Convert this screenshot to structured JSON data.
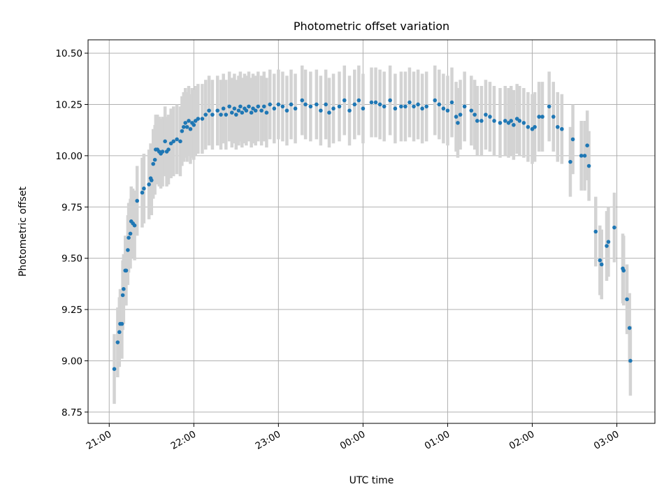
{
  "chart_data": {
    "type": "scatter",
    "title": "Photometric offset variation",
    "xlabel": "UTC time",
    "ylabel": "Photometric offset",
    "x_unit": "hours since 21:00 UTC",
    "xlim": [
      -0.25,
      6.45
    ],
    "ylim": [
      8.695,
      10.565
    ],
    "x_ticks": [
      {
        "x": 0,
        "label": "21:00"
      },
      {
        "x": 1,
        "label": "22:00"
      },
      {
        "x": 2,
        "label": "23:00"
      },
      {
        "x": 3,
        "label": "00:00"
      },
      {
        "x": 4,
        "label": "01:00"
      },
      {
        "x": 5,
        "label": "02:00"
      },
      {
        "x": 6,
        "label": "03:00"
      }
    ],
    "y_ticks": [
      {
        "y": 8.75,
        "label": "8.75"
      },
      {
        "y": 9.0,
        "label": "9.00"
      },
      {
        "y": 9.25,
        "label": "9.25"
      },
      {
        "y": 9.5,
        "label": "9.50"
      },
      {
        "y": 9.75,
        "label": "9.75"
      },
      {
        "y": 10.0,
        "label": "10.00"
      },
      {
        "y": 10.25,
        "label": "10.25"
      },
      {
        "y": 10.5,
        "label": "10.50"
      }
    ],
    "grid": true,
    "legend": "none",
    "point_color": "#1f77b4",
    "errorbar_color": "#d3d3d3",
    "errorbar_half_height": 0.17,
    "points": [
      {
        "x": 0.06,
        "y": 8.96
      },
      {
        "x": 0.1,
        "y": 9.09
      },
      {
        "x": 0.12,
        "y": 9.14
      },
      {
        "x": 0.13,
        "y": 9.18
      },
      {
        "x": 0.15,
        "y": 9.18
      },
      {
        "x": 0.16,
        "y": 9.32
      },
      {
        "x": 0.17,
        "y": 9.35
      },
      {
        "x": 0.19,
        "y": 9.44
      },
      {
        "x": 0.2,
        "y": 9.44
      },
      {
        "x": 0.22,
        "y": 9.54
      },
      {
        "x": 0.23,
        "y": 9.6
      },
      {
        "x": 0.25,
        "y": 9.62
      },
      {
        "x": 0.26,
        "y": 9.68
      },
      {
        "x": 0.28,
        "y": 9.67
      },
      {
        "x": 0.3,
        "y": 9.66
      },
      {
        "x": 0.33,
        "y": 9.78
      },
      {
        "x": 0.39,
        "y": 9.82
      },
      {
        "x": 0.41,
        "y": 9.84
      },
      {
        "x": 0.47,
        "y": 9.86
      },
      {
        "x": 0.49,
        "y": 9.89
      },
      {
        "x": 0.5,
        "y": 9.88
      },
      {
        "x": 0.52,
        "y": 9.96
      },
      {
        "x": 0.54,
        "y": 9.98
      },
      {
        "x": 0.55,
        "y": 10.03
      },
      {
        "x": 0.57,
        "y": 10.03
      },
      {
        "x": 0.59,
        "y": 10.02
      },
      {
        "x": 0.61,
        "y": 10.01
      },
      {
        "x": 0.63,
        "y": 10.02
      },
      {
        "x": 0.66,
        "y": 10.07
      },
      {
        "x": 0.68,
        "y": 10.02
      },
      {
        "x": 0.7,
        "y": 10.03
      },
      {
        "x": 0.73,
        "y": 10.06
      },
      {
        "x": 0.76,
        "y": 10.07
      },
      {
        "x": 0.8,
        "y": 10.08
      },
      {
        "x": 0.84,
        "y": 10.07
      },
      {
        "x": 0.86,
        "y": 10.12
      },
      {
        "x": 0.88,
        "y": 10.14
      },
      {
        "x": 0.9,
        "y": 10.16
      },
      {
        "x": 0.92,
        "y": 10.14
      },
      {
        "x": 0.94,
        "y": 10.17
      },
      {
        "x": 0.96,
        "y": 10.13
      },
      {
        "x": 0.98,
        "y": 10.16
      },
      {
        "x": 1.0,
        "y": 10.15
      },
      {
        "x": 1.02,
        "y": 10.17
      },
      {
        "x": 1.05,
        "y": 10.18
      },
      {
        "x": 1.1,
        "y": 10.18
      },
      {
        "x": 1.14,
        "y": 10.2
      },
      {
        "x": 1.18,
        "y": 10.22
      },
      {
        "x": 1.22,
        "y": 10.2
      },
      {
        "x": 1.28,
        "y": 10.22
      },
      {
        "x": 1.32,
        "y": 10.2
      },
      {
        "x": 1.35,
        "y": 10.23
      },
      {
        "x": 1.38,
        "y": 10.2
      },
      {
        "x": 1.42,
        "y": 10.24
      },
      {
        "x": 1.45,
        "y": 10.21
      },
      {
        "x": 1.48,
        "y": 10.23
      },
      {
        "x": 1.5,
        "y": 10.2
      },
      {
        "x": 1.53,
        "y": 10.22
      },
      {
        "x": 1.55,
        "y": 10.24
      },
      {
        "x": 1.57,
        "y": 10.21
      },
      {
        "x": 1.6,
        "y": 10.23
      },
      {
        "x": 1.62,
        "y": 10.22
      },
      {
        "x": 1.65,
        "y": 10.24
      },
      {
        "x": 1.68,
        "y": 10.21
      },
      {
        "x": 1.7,
        "y": 10.23
      },
      {
        "x": 1.73,
        "y": 10.22
      },
      {
        "x": 1.76,
        "y": 10.24
      },
      {
        "x": 1.8,
        "y": 10.22
      },
      {
        "x": 1.83,
        "y": 10.24
      },
      {
        "x": 1.86,
        "y": 10.21
      },
      {
        "x": 1.9,
        "y": 10.25
      },
      {
        "x": 1.95,
        "y": 10.23
      },
      {
        "x": 2.0,
        "y": 10.25
      },
      {
        "x": 2.05,
        "y": 10.24
      },
      {
        "x": 2.1,
        "y": 10.22
      },
      {
        "x": 2.15,
        "y": 10.25
      },
      {
        "x": 2.2,
        "y": 10.23
      },
      {
        "x": 2.28,
        "y": 10.27
      },
      {
        "x": 2.32,
        "y": 10.25
      },
      {
        "x": 2.38,
        "y": 10.24
      },
      {
        "x": 2.45,
        "y": 10.25
      },
      {
        "x": 2.5,
        "y": 10.22
      },
      {
        "x": 2.56,
        "y": 10.25
      },
      {
        "x": 2.6,
        "y": 10.21
      },
      {
        "x": 2.65,
        "y": 10.23
      },
      {
        "x": 2.72,
        "y": 10.24
      },
      {
        "x": 2.78,
        "y": 10.27
      },
      {
        "x": 2.84,
        "y": 10.22
      },
      {
        "x": 2.9,
        "y": 10.25
      },
      {
        "x": 2.95,
        "y": 10.27
      },
      {
        "x": 3.0,
        "y": 10.23
      },
      {
        "x": 3.1,
        "y": 10.26
      },
      {
        "x": 3.15,
        "y": 10.26
      },
      {
        "x": 3.2,
        "y": 10.25
      },
      {
        "x": 3.25,
        "y": 10.24
      },
      {
        "x": 3.32,
        "y": 10.27
      },
      {
        "x": 3.38,
        "y": 10.23
      },
      {
        "x": 3.45,
        "y": 10.24
      },
      {
        "x": 3.5,
        "y": 10.24
      },
      {
        "x": 3.55,
        "y": 10.26
      },
      {
        "x": 3.6,
        "y": 10.24
      },
      {
        "x": 3.65,
        "y": 10.25
      },
      {
        "x": 3.7,
        "y": 10.23
      },
      {
        "x": 3.75,
        "y": 10.24
      },
      {
        "x": 3.85,
        "y": 10.27
      },
      {
        "x": 3.9,
        "y": 10.25
      },
      {
        "x": 3.95,
        "y": 10.23
      },
      {
        "x": 4.0,
        "y": 10.22
      },
      {
        "x": 4.05,
        "y": 10.26
      },
      {
        "x": 4.1,
        "y": 10.19
      },
      {
        "x": 4.12,
        "y": 10.16
      },
      {
        "x": 4.15,
        "y": 10.2
      },
      {
        "x": 4.2,
        "y": 10.24
      },
      {
        "x": 4.28,
        "y": 10.22
      },
      {
        "x": 4.32,
        "y": 10.2
      },
      {
        "x": 4.35,
        "y": 10.17
      },
      {
        "x": 4.4,
        "y": 10.17
      },
      {
        "x": 4.45,
        "y": 10.2
      },
      {
        "x": 4.5,
        "y": 10.19
      },
      {
        "x": 4.55,
        "y": 10.17
      },
      {
        "x": 4.62,
        "y": 10.16
      },
      {
        "x": 4.68,
        "y": 10.17
      },
      {
        "x": 4.72,
        "y": 10.16
      },
      {
        "x": 4.75,
        "y": 10.17
      },
      {
        "x": 4.78,
        "y": 10.15
      },
      {
        "x": 4.82,
        "y": 10.18
      },
      {
        "x": 4.85,
        "y": 10.17
      },
      {
        "x": 4.9,
        "y": 10.16
      },
      {
        "x": 4.95,
        "y": 10.14
      },
      {
        "x": 5.0,
        "y": 10.13
      },
      {
        "x": 5.03,
        "y": 10.14
      },
      {
        "x": 5.08,
        "y": 10.19
      },
      {
        "x": 5.12,
        "y": 10.19
      },
      {
        "x": 5.2,
        "y": 10.24
      },
      {
        "x": 5.25,
        "y": 10.19
      },
      {
        "x": 5.3,
        "y": 10.14
      },
      {
        "x": 5.35,
        "y": 10.13
      },
      {
        "x": 5.45,
        "y": 9.97
      },
      {
        "x": 5.48,
        "y": 10.08
      },
      {
        "x": 5.58,
        "y": 10.0
      },
      {
        "x": 5.62,
        "y": 10.0
      },
      {
        "x": 5.65,
        "y": 10.05
      },
      {
        "x": 5.67,
        "y": 9.95
      },
      {
        "x": 5.75,
        "y": 9.63
      },
      {
        "x": 5.8,
        "y": 9.49
      },
      {
        "x": 5.82,
        "y": 9.47
      },
      {
        "x": 5.88,
        "y": 9.56
      },
      {
        "x": 5.9,
        "y": 9.58
      },
      {
        "x": 5.97,
        "y": 9.65
      },
      {
        "x": 6.07,
        "y": 9.45
      },
      {
        "x": 6.08,
        "y": 9.44
      },
      {
        "x": 6.12,
        "y": 9.3
      },
      {
        "x": 6.15,
        "y": 9.16
      },
      {
        "x": 6.16,
        "y": 9.0
      }
    ]
  }
}
